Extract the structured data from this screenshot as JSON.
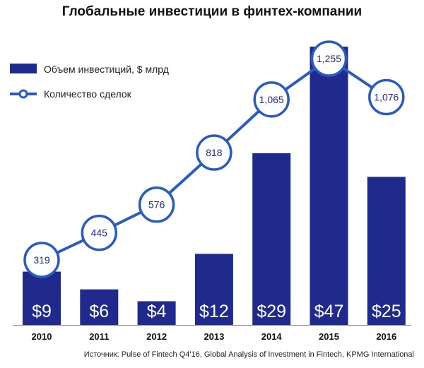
{
  "chart_data": {
    "type": "bar",
    "title": "Глобальные инвестиции в финтех-компании",
    "categories": [
      "2010",
      "2011",
      "2012",
      "2013",
      "2014",
      "2015",
      "2016"
    ],
    "series": [
      {
        "name": "Объем инвестиций, $ млрд",
        "type": "bar",
        "values": [
          9,
          6,
          4,
          12,
          29,
          47,
          25
        ],
        "labels": [
          "$9",
          "$6",
          "$4",
          "$12",
          "$29",
          "$47",
          "$25"
        ]
      },
      {
        "name": "Количество сделок",
        "type": "line",
        "values": [
          319,
          445,
          576,
          818,
          1065,
          1255,
          1076
        ],
        "labels": [
          "319",
          "445",
          "576",
          "818",
          "1,065",
          "1,255",
          "1,076"
        ]
      }
    ],
    "legend_position": "top-left",
    "grid": false
  },
  "source": "Источник: Pulse of Fintech Q4'16, Global Analysis of Investment in Fintech, KPMG International",
  "colors": {
    "bar": "#1f2a8c",
    "line": "#2a5cbf",
    "marker_fill": "#ffffff",
    "bar_label": "#ffffff",
    "marker_label": "#1f2a8c"
  }
}
